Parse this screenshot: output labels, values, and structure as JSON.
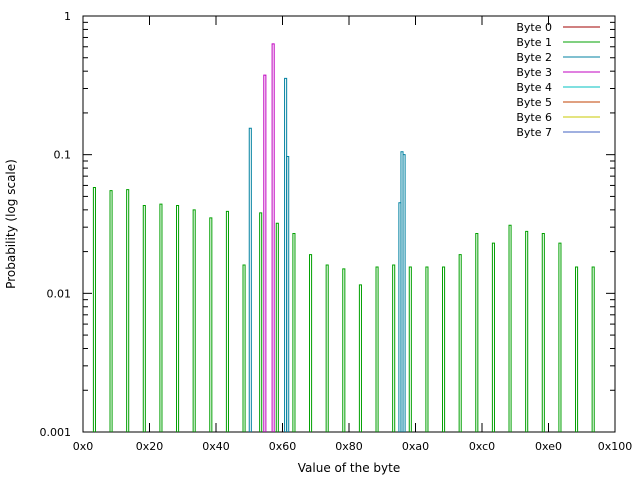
{
  "chart_data": {
    "type": "line",
    "title": "",
    "xlabel": "Value of the byte",
    "ylabel": "Probability (log scale)",
    "ylog": true,
    "xlim": [
      0,
      256
    ],
    "ylim": [
      0.001,
      1
    ],
    "x_ticks": [
      {
        "v": 0,
        "label": "0x0"
      },
      {
        "v": 32,
        "label": "0x20"
      },
      {
        "v": 64,
        "label": "0x40"
      },
      {
        "v": 96,
        "label": "0x60"
      },
      {
        "v": 128,
        "label": "0x80"
      },
      {
        "v": 160,
        "label": "0xa0"
      },
      {
        "v": 192,
        "label": "0xc0"
      },
      {
        "v": 224,
        "label": "0xe0"
      },
      {
        "v": 256,
        "label": "0x100"
      }
    ],
    "y_ticks": [
      {
        "v": 0.001,
        "label": "0.001"
      },
      {
        "v": 0.01,
        "label": "0.01"
      },
      {
        "v": 0.1,
        "label": "0.1"
      },
      {
        "v": 1,
        "label": "1"
      }
    ],
    "legend_position": "top-right",
    "grid": false,
    "series": [
      {
        "name": "Byte 0",
        "color": "#a00000",
        "spikes": []
      },
      {
        "name": "Byte 1",
        "color": "#00a000",
        "spikes": [
          [
            5,
            0.058
          ],
          [
            13,
            0.055
          ],
          [
            21,
            0.056
          ],
          [
            29,
            0.043
          ],
          [
            37,
            0.044
          ],
          [
            45,
            0.043
          ],
          [
            53,
            0.04
          ],
          [
            61,
            0.035
          ],
          [
            69,
            0.039
          ],
          [
            77,
            0.016
          ],
          [
            85,
            0.038
          ],
          [
            93,
            0.032
          ],
          [
            101,
            0.027
          ],
          [
            109,
            0.019
          ],
          [
            117,
            0.016
          ],
          [
            125,
            0.015
          ],
          [
            133,
            0.0115
          ],
          [
            141,
            0.0155
          ],
          [
            149,
            0.016
          ],
          [
            157,
            0.0155
          ],
          [
            165,
            0.0155
          ],
          [
            173,
            0.0155
          ],
          [
            181,
            0.019
          ],
          [
            189,
            0.027
          ],
          [
            197,
            0.023
          ],
          [
            205,
            0.031
          ],
          [
            213,
            0.028
          ],
          [
            221,
            0.027
          ],
          [
            229,
            0.023
          ],
          [
            237,
            0.0155
          ],
          [
            245,
            0.0155
          ]
        ]
      },
      {
        "name": "Byte 2",
        "color": "#0080a0",
        "spikes": [
          [
            80,
            0.155
          ],
          [
            97,
            0.355
          ],
          [
            98,
            0.097
          ],
          [
            152,
            0.045
          ],
          [
            153,
            0.105
          ],
          [
            154,
            0.1
          ]
        ]
      },
      {
        "name": "Byte 3",
        "color": "#c000c0",
        "spikes": [
          [
            87,
            0.375
          ],
          [
            91,
            0.63
          ]
        ]
      },
      {
        "name": "Byte 4",
        "color": "#00c0c0",
        "spikes": []
      },
      {
        "name": "Byte 5",
        "color": "#c04000",
        "spikes": []
      },
      {
        "name": "Byte 6",
        "color": "#c8c800",
        "spikes": []
      },
      {
        "name": "Byte 7",
        "color": "#4060c0",
        "spikes": []
      }
    ]
  }
}
